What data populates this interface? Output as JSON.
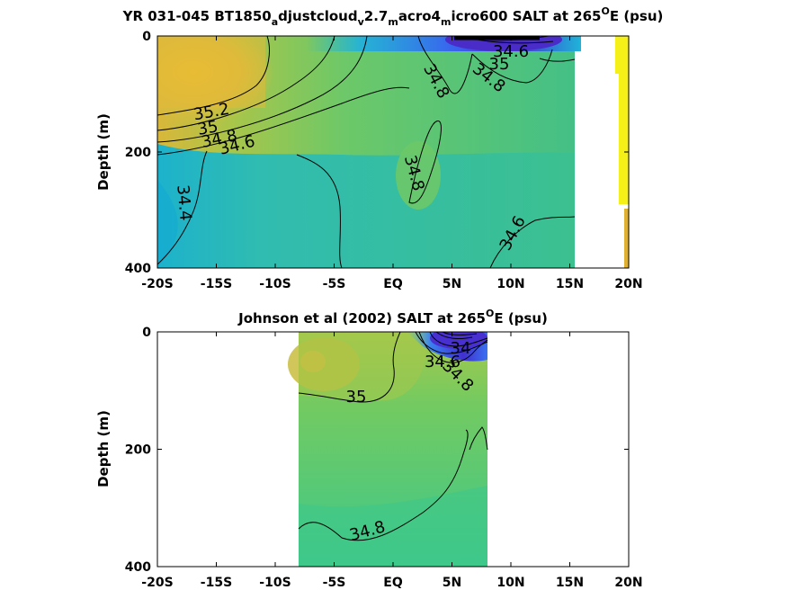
{
  "chart_data": [
    {
      "type": "heatmap",
      "title": {
        "pre": "YR 031-045 BT1850",
        "s1": "a",
        "t1": "djustcloud",
        "s2": "v",
        "t2": "2.7",
        "s3": "m",
        "t3": "acro4",
        "s4": "m",
        "t4": "icro600 SALT at 265",
        "sup": "O",
        "post": "E (psu)"
      },
      "ylabel": "Depth (m)",
      "xlim": [
        -20,
        20
      ],
      "ylim": [
        0,
        400
      ],
      "y_reversed": true,
      "x_ticks": [
        -20,
        -15,
        -10,
        -5,
        0,
        5,
        10,
        15,
        20
      ],
      "x_tick_labels": [
        "-20S",
        "-15S",
        "-10S",
        "-5S",
        "EQ",
        "5N",
        "10N",
        "15N",
        "20N"
      ],
      "y_ticks": [
        0,
        200,
        400
      ],
      "y_tick_labels": [
        "0",
        "200",
        "400"
      ],
      "colormap": "parula",
      "contour_labels": [
        {
          "value": "35.2",
          "x": -17.5,
          "y": 128
        },
        {
          "value": "35",
          "x": -17.3,
          "y": 148
        },
        {
          "value": "34.8",
          "x": -16.5,
          "y": 162
        },
        {
          "value": "34.6",
          "x": -13.5,
          "y": 180
        },
        {
          "value": "34.4",
          "x": -18.0,
          "y": 290
        },
        {
          "value": "34.8",
          "x": 1.3,
          "y": 240
        },
        {
          "value": "34.8",
          "x": 3.5,
          "y": 80
        },
        {
          "value": "34.8",
          "x": 7.5,
          "y": 80
        },
        {
          "value": "35",
          "x": 8.5,
          "y": 45
        },
        {
          "value": "34.6",
          "x": 10.0,
          "y": 30
        },
        {
          "value": "34.6",
          "x": 9.5,
          "y": 310
        }
      ]
    },
    {
      "type": "heatmap",
      "title": {
        "pre": "Johnson et al (2002) SALT at 265",
        "sup": "O",
        "post": "E (psu)"
      },
      "ylabel": "Depth (m)",
      "xlim": [
        -20,
        20
      ],
      "ylim": [
        0,
        400
      ],
      "y_reversed": true,
      "data_x_extent": [
        -8,
        8
      ],
      "x_ticks": [
        -20,
        -15,
        -10,
        -5,
        0,
        5,
        10,
        15,
        20
      ],
      "x_tick_labels": [
        "-20S",
        "-15S",
        "-10S",
        "-5S",
        "EQ",
        "5N",
        "10N",
        "15N",
        "20N"
      ],
      "y_ticks": [
        0,
        200,
        400
      ],
      "y_tick_labels": [
        "0",
        "200",
        "400"
      ],
      "colormap": "parula",
      "contour_labels": [
        {
          "value": "35",
          "x": -3.2,
          "y": 110
        },
        {
          "value": "34",
          "x": 5.5,
          "y": 33
        },
        {
          "value": "34.6",
          "x": 4.5,
          "y": 50
        },
        {
          "value": "34.8",
          "x": 5.2,
          "y": 80
        },
        {
          "value": "34.8",
          "x": -2.2,
          "y": 335
        }
      ]
    }
  ]
}
